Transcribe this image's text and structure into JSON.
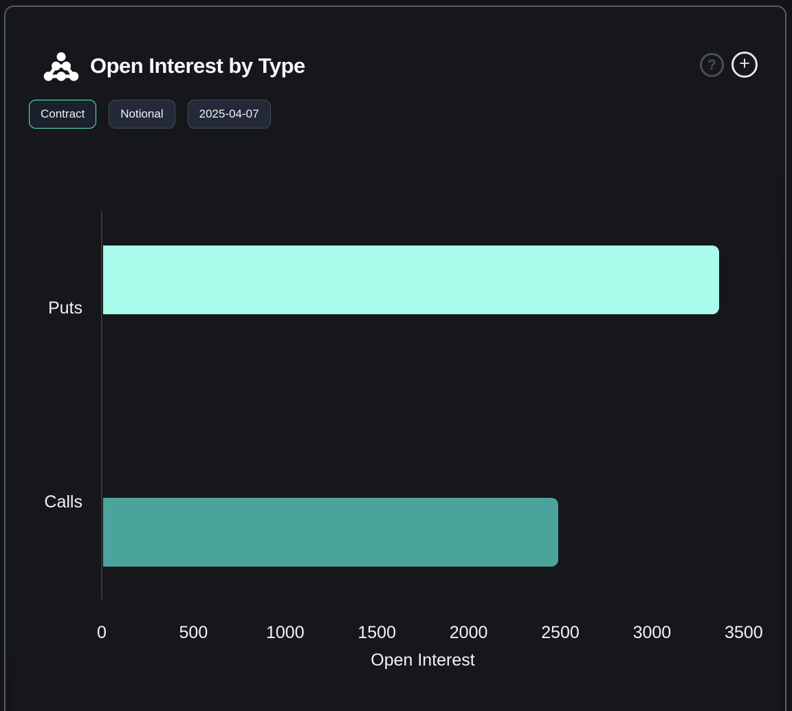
{
  "window": {
    "background": "#131418",
    "card_background": "#16171b",
    "card_border": "#575c66",
    "accent": "#5eead4"
  },
  "header": {
    "title": "Open Interest by Type",
    "logo_icon": "pyramid-dots-logo",
    "help_glyph": "?",
    "add_glyph": "+"
  },
  "toolbar": {
    "buttons": [
      {
        "label": "Contract",
        "active": true
      },
      {
        "label": "Notional",
        "active": false
      },
      {
        "label": "2025-04-07",
        "active": false
      }
    ]
  },
  "chart_data": {
    "type": "bar",
    "orientation": "horizontal",
    "categories": [
      "Puts",
      "Calls"
    ],
    "values": [
      3360,
      2480
    ],
    "bar_colors": [
      "#a9fbec",
      "#4aa49c"
    ],
    "title": "Open Interest by Type",
    "xlabel": "Open Interest",
    "ylabel": "",
    "xlim": [
      0,
      3500
    ],
    "xticks": [
      0,
      500,
      1000,
      1500,
      2000,
      2500,
      3000,
      3500
    ],
    "grid": false,
    "legend": null
  }
}
